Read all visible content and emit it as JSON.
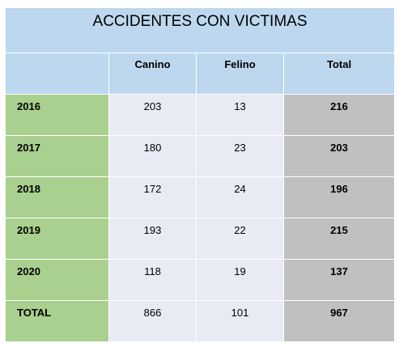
{
  "table": {
    "title": "ACCIDENTES CON VICTIMAS",
    "headers": [
      "",
      "Canino",
      "Felino",
      "Total"
    ],
    "rows": [
      {
        "year": "2016",
        "canino": "203",
        "felino": "13",
        "total": "216"
      },
      {
        "year": "2017",
        "canino": "180",
        "felino": "23",
        "total": "203"
      },
      {
        "year": "2018",
        "canino": "172",
        "felino": "24",
        "total": "196"
      },
      {
        "year": "2019",
        "canino": "193",
        "felino": "22",
        "total": "215"
      },
      {
        "year": "2020",
        "canino": "118",
        "felino": "19",
        "total": "137"
      },
      {
        "year": "TOTAL",
        "canino": "866",
        "felino": "101",
        "total": "967"
      }
    ]
  },
  "colors": {
    "header_blue": "#bdd7ee",
    "year_green": "#a9d08e",
    "value_lavender": "#e8eaf4",
    "total_gray": "#c0c0c0"
  }
}
